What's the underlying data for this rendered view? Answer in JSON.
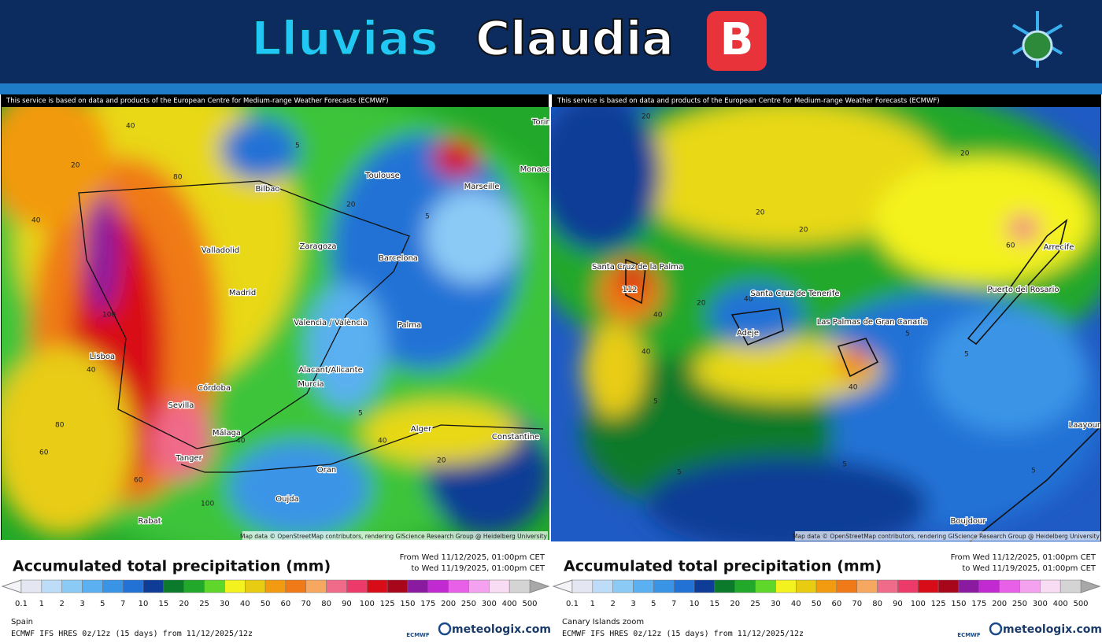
{
  "header": {
    "title_part1": "Lluvias",
    "title_part2": "Claudia",
    "badge": "B"
  },
  "scale": {
    "ticks": [
      "0.1",
      "1",
      "2",
      "3",
      "5",
      "7",
      "10",
      "15",
      "20",
      "25",
      "30",
      "40",
      "50",
      "60",
      "70",
      "80",
      "90",
      "100",
      "125",
      "150",
      "175",
      "200",
      "250",
      "300",
      "400",
      "500"
    ],
    "colors": [
      "#e4e6f2",
      "#bcdcf8",
      "#8ccaf6",
      "#5ab0f0",
      "#3a94e6",
      "#2272d6",
      "#0f3c96",
      "#0b7a2a",
      "#22a82a",
      "#5fd62a",
      "#f4f21e",
      "#e8cc12",
      "#f29a10",
      "#f07a18",
      "#f6a860",
      "#f06a8a",
      "#ec3a6a",
      "#d80c18",
      "#a8061a",
      "#8a1aa0",
      "#c02ad0",
      "#e860e8",
      "#f4a2f0",
      "#f8dcf4",
      "#d4d4d4"
    ]
  },
  "panels": [
    {
      "notice": "This service is based on data and products of the European Centre for Medium-range Weather Forecasts (ECMWF)",
      "attribution": "Map data © OpenStreetMap contributors, rendering GIScience Research Group @ Heidelberg University",
      "legend_title": "Accumulated total precipitation (mm)",
      "period_from": "From Wed 11/12/2025, 01:00pm CET",
      "period_to": "to Wed 11/19/2025, 01:00pm CET",
      "region": "Spain",
      "model": "ECMWF IFS HRES 0z/12z (15 days) from 11/12/2025/12z",
      "logo_ecmwf": "ECMWF",
      "logo_brand": "meteologix.com",
      "places": [
        "Bilbao",
        "Toulouse",
        "Marseille",
        "Monaco",
        "Torin",
        "Valladolid",
        "Zaragoza",
        "Barcelona",
        "Madrid",
        "Valencia / València",
        "Palma",
        "Lisboa",
        "Alacant/Alicante",
        "Murcia",
        "Córdoba",
        "Sevilla",
        "Málaga",
        "Tanger",
        "Alger",
        "Oran",
        "Constantine",
        "Oujda",
        "Rabat"
      ],
      "contours": [
        "40",
        "20",
        "40",
        "80",
        "100",
        "40",
        "5",
        "5",
        "20",
        "60",
        "80",
        "40",
        "5",
        "100",
        "20",
        "40",
        "60"
      ]
    },
    {
      "notice": "This service is based on data and products of the European Centre for Medium-range Weather Forecasts (ECMWF)",
      "attribution": "Map data © OpenStreetMap contributors, rendering GIScience Research Group @ Heidelberg University",
      "legend_title": "Accumulated total precipitation (mm)",
      "period_from": "From Wed 11/12/2025, 01:00pm CET",
      "period_to": "to Wed 11/19/2025, 01:00pm CET",
      "region": "Canary Islands zoom",
      "model": "ECMWF IFS HRES 0z/12z (15 days) from 11/12/2025/12z",
      "logo_ecmwf": "ECMWF",
      "logo_brand": "meteologix.com",
      "places": [
        "Santa Cruz de la Palma",
        "112",
        "Santa Cruz de Tenerife",
        "Adeje",
        "Las Palmas de Gran Canaria",
        "Puerto del Rosario",
        "Arrecife",
        "Boujdour",
        "Laayoune"
      ],
      "contours": [
        "20",
        "40",
        "20",
        "60",
        "5",
        "20",
        "40",
        "5",
        "40",
        "20",
        "5",
        "5",
        "20",
        "40",
        "5",
        "5"
      ]
    }
  ]
}
